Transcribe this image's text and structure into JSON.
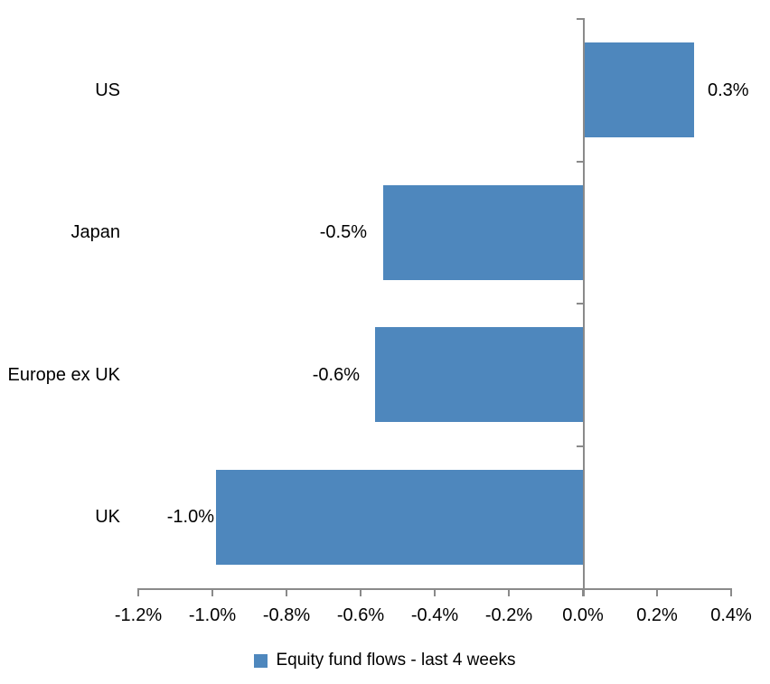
{
  "chart_data": {
    "type": "bar",
    "orientation": "horizontal",
    "title": "",
    "categories": [
      "US",
      "Japan",
      "Europe ex UK",
      "UK"
    ],
    "series": [
      {
        "name": "Equity fund flows - last 4 weeks",
        "values": [
          0.3,
          -0.5,
          -0.6,
          -1.0
        ]
      }
    ],
    "data_labels": [
      "0.3%",
      "-0.5%",
      "-0.6%",
      "-1.0%"
    ],
    "plotted_bar_values": [
      0.3,
      -0.54,
      -0.56,
      -0.99
    ],
    "x_axis": {
      "min": -1.2,
      "max": 0.4,
      "tick_step": 0.2,
      "tick_labels": [
        "-1.2%",
        "-1.0%",
        "-0.8%",
        "-0.6%",
        "-0.4%",
        "-0.2%",
        "0.0%",
        "0.2%",
        "0.4%"
      ],
      "unit": "%"
    },
    "grid": false,
    "legend": {
      "position": "bottom",
      "entries": [
        {
          "label": "Equity fund flows - last 4 weeks",
          "swatch_color": "#4E87BD"
        }
      ]
    },
    "colors": {
      "bar": "#4E87BD",
      "axis": "#8A8A8A",
      "text": "#000000",
      "background": "#FFFFFF"
    }
  }
}
